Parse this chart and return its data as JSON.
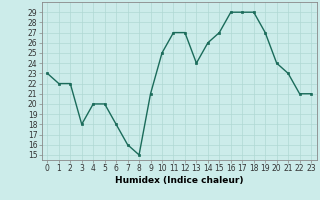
{
  "x": [
    0,
    1,
    2,
    3,
    4,
    5,
    6,
    7,
    8,
    9,
    10,
    11,
    12,
    13,
    14,
    15,
    16,
    17,
    18,
    19,
    20,
    21,
    22,
    23
  ],
  "y": [
    23,
    22,
    22,
    18,
    20,
    20,
    18,
    16,
    15,
    21,
    25,
    27,
    27,
    24,
    26,
    27,
    29,
    29,
    29,
    27,
    24,
    23,
    21,
    21
  ],
  "line_color": "#1a6b5a",
  "marker": "s",
  "marker_size": 2.0,
  "bg_color": "#ccecea",
  "grid_color": "#b0d8d4",
  "xlabel": "Humidex (Indice chaleur)",
  "xlim": [
    -0.5,
    23.5
  ],
  "ylim": [
    14.5,
    30.0
  ],
  "yticks": [
    15,
    16,
    17,
    18,
    19,
    20,
    21,
    22,
    23,
    24,
    25,
    26,
    27,
    28,
    29
  ],
  "xticks": [
    0,
    1,
    2,
    3,
    4,
    5,
    6,
    7,
    8,
    9,
    10,
    11,
    12,
    13,
    14,
    15,
    16,
    17,
    18,
    19,
    20,
    21,
    22,
    23
  ],
  "tick_label_size": 5.5,
  "xlabel_size": 6.5,
  "line_width": 1.0
}
